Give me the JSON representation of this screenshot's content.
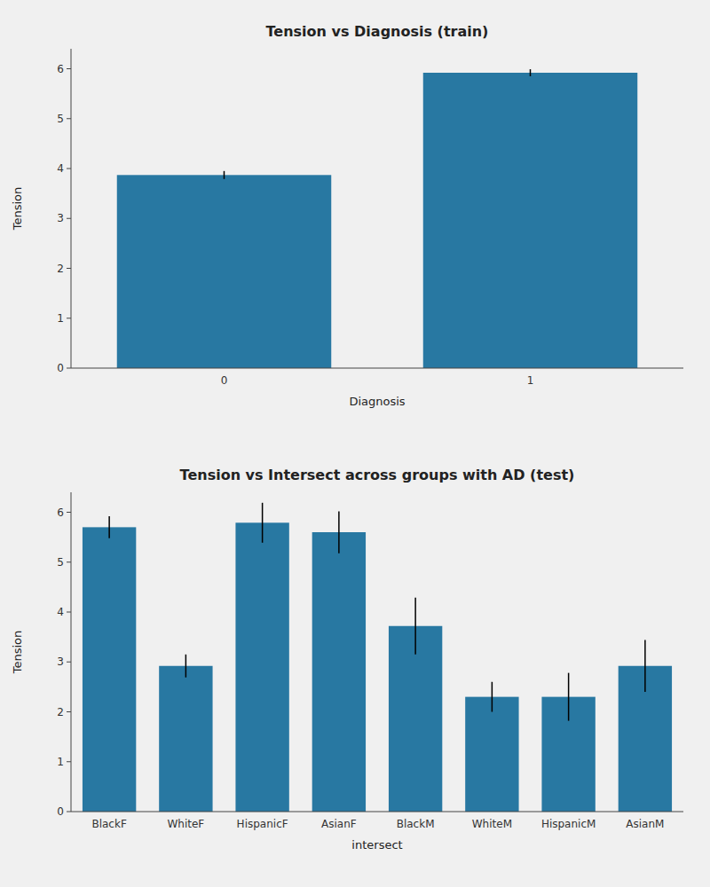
{
  "chart_data": [
    {
      "type": "bar",
      "title": "Tension vs Diagnosis (train)",
      "x_label": "Diagnosis",
      "y_label": "Tension",
      "categories": [
        0,
        1
      ],
      "values": [
        3.87,
        5.92
      ],
      "errors": [
        0.08,
        0.07
      ],
      "color": "#2878a2",
      "ylim": [
        0,
        6.4
      ],
      "yticks": [
        0,
        1,
        2,
        3,
        4,
        5,
        6
      ],
      "grid": false
    },
    {
      "type": "bar",
      "title": "Tension vs Intersect across groups with AD (test)",
      "x_label": "intersect",
      "y_label": "Tension",
      "categories": [
        "BlackF",
        "WhiteF",
        "HispanicF",
        "AsianF",
        "BlackM",
        "WhiteM",
        "HispanicM",
        "AsianM"
      ],
      "values": [
        5.7,
        2.92,
        5.79,
        5.6,
        3.72,
        2.3,
        2.3,
        2.92
      ],
      "errors": [
        0.22,
        0.23,
        0.4,
        0.42,
        0.57,
        0.3,
        0.48,
        0.52
      ],
      "color": "#2878a2",
      "ylim": [
        0,
        6.4
      ],
      "yticks": [
        0,
        1,
        2,
        3,
        4,
        5,
        6
      ],
      "grid": false
    }
  ]
}
